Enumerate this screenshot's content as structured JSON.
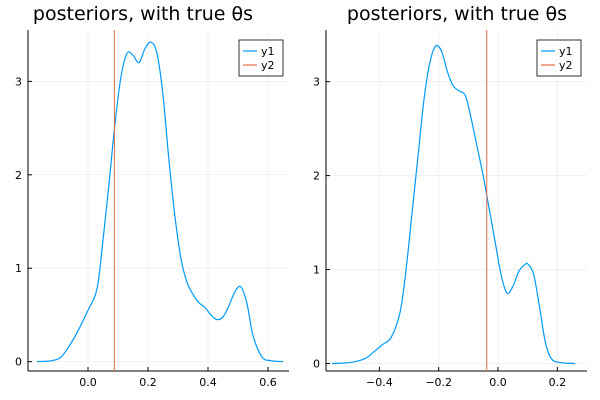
{
  "colors": {
    "y1": "#009af9",
    "y2": "#e26f46"
  },
  "chart_data": [
    {
      "type": "line",
      "title": "posteriors, with true θs",
      "xlabel": "",
      "ylabel": "",
      "xlim": [
        -0.2,
        0.67
      ],
      "ylim": [
        -0.1,
        3.55
      ],
      "xticks": [
        0.0,
        0.2,
        0.4,
        0.6
      ],
      "xtick_labels": [
        "0.0",
        "0.2",
        "0.4",
        "0.6"
      ],
      "yticks": [
        0,
        1,
        2,
        3
      ],
      "ytick_labels": [
        "0",
        "1",
        "2",
        "3"
      ],
      "grid": true,
      "legend": "top-right",
      "series": [
        {
          "name": "y1",
          "color": "#009af9",
          "x": [
            -0.17,
            -0.12,
            -0.09,
            -0.06,
            -0.03,
            0.0,
            0.03,
            0.05,
            0.07,
            0.09,
            0.11,
            0.13,
            0.15,
            0.17,
            0.19,
            0.21,
            0.23,
            0.25,
            0.27,
            0.29,
            0.31,
            0.33,
            0.35,
            0.37,
            0.39,
            0.41,
            0.43,
            0.45,
            0.47,
            0.49,
            0.51,
            0.53,
            0.55,
            0.58,
            0.61,
            0.65
          ],
          "values": [
            0.0,
            0.01,
            0.05,
            0.18,
            0.35,
            0.55,
            0.78,
            1.3,
            1.9,
            2.55,
            3.05,
            3.3,
            3.28,
            3.2,
            3.35,
            3.42,
            3.3,
            2.85,
            2.15,
            1.55,
            1.1,
            0.85,
            0.72,
            0.63,
            0.58,
            0.5,
            0.45,
            0.48,
            0.6,
            0.75,
            0.8,
            0.62,
            0.28,
            0.05,
            0.01,
            0.0
          ]
        },
        {
          "name": "y2",
          "color": "#e26f46",
          "type": "vline",
          "x_value": 0.088
        }
      ]
    },
    {
      "type": "line",
      "title": "posteriors, with true θs",
      "xlabel": "",
      "ylabel": "",
      "xlim": [
        -0.58,
        0.3
      ],
      "ylim": [
        -0.08,
        3.55
      ],
      "xticks": [
        -0.4,
        -0.2,
        0.0,
        0.2
      ],
      "xtick_labels": [
        "−0.4",
        "−0.2",
        "0.0",
        "0.2"
      ],
      "yticks": [
        0,
        1,
        2,
        3
      ],
      "ytick_labels": [
        "0",
        "1",
        "2",
        "3"
      ],
      "grid": true,
      "legend": "top-right",
      "series": [
        {
          "name": "y1",
          "color": "#009af9",
          "x": [
            -0.56,
            -0.5,
            -0.45,
            -0.42,
            -0.39,
            -0.36,
            -0.33,
            -0.31,
            -0.29,
            -0.27,
            -0.25,
            -0.23,
            -0.21,
            -0.19,
            -0.17,
            -0.15,
            -0.13,
            -0.11,
            -0.09,
            -0.07,
            -0.05,
            -0.03,
            -0.01,
            0.01,
            0.03,
            0.05,
            0.07,
            0.09,
            0.1,
            0.12,
            0.14,
            0.16,
            0.18,
            0.21,
            0.26
          ],
          "values": [
            0.0,
            0.01,
            0.05,
            0.12,
            0.2,
            0.28,
            0.55,
            1.0,
            1.6,
            2.2,
            2.8,
            3.2,
            3.38,
            3.32,
            3.1,
            2.95,
            2.9,
            2.85,
            2.6,
            2.3,
            2.0,
            1.65,
            1.3,
            0.95,
            0.75,
            0.82,
            0.98,
            1.05,
            1.06,
            0.95,
            0.6,
            0.22,
            0.05,
            0.01,
            0.0
          ]
        },
        {
          "name": "y2",
          "color": "#e26f46",
          "type": "vline",
          "x_value": -0.038
        }
      ]
    }
  ]
}
